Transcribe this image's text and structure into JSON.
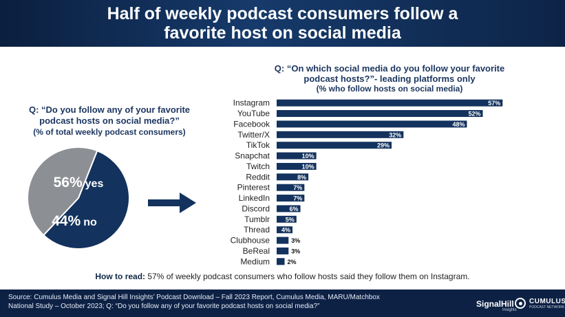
{
  "header": {
    "title_line1": "Half of weekly podcast consumers follow a",
    "title_line2": "favorite host on social media"
  },
  "left_question": {
    "line1": "Q: “Do you follow any of your favorite",
    "line2": "podcast hosts on social media?”",
    "line3": "(% of total weekly podcast consumers)"
  },
  "right_question": {
    "line1": "Q: “On which social media do you follow your favorite",
    "line2": "podcast hosts?”-  leading platforms only",
    "line3": "(% who follow hosts on social media)"
  },
  "colors": {
    "navy": "#13325e",
    "gray": "#8c8f94",
    "white": "#ffffff"
  },
  "chart_data": [
    {
      "type": "pie",
      "slices": [
        {
          "label": "yes",
          "value": 56,
          "text": "56%",
          "color": "#13325e"
        },
        {
          "label": "no",
          "value": 44,
          "text": "44%",
          "color": "#8c8f94"
        }
      ]
    },
    {
      "type": "bar",
      "orientation": "horizontal",
      "categories": [
        "Instagram",
        "YouTube",
        "Facebook",
        "Twitter/X",
        "TikTok",
        "Snapchat",
        "Twitch",
        "Reddit",
        "Pinterest",
        "LinkedIn",
        "Discord",
        "Tumblr",
        "Thread",
        "Clubhouse",
        "BeReal",
        "Medium"
      ],
      "values": [
        57,
        52,
        48,
        32,
        29,
        10,
        10,
        8,
        7,
        7,
        6,
        5,
        4,
        3,
        3,
        2
      ],
      "value_suffix": "%",
      "xlim": [
        0,
        60
      ],
      "grid": false,
      "color": "#13325e"
    }
  ],
  "how_to_read": {
    "label": "How to read:",
    "text": " 57% of weekly podcast consumers who follow hosts said they follow them on Instagram."
  },
  "footer": {
    "source_line1": "Source: Cumulus Media and Signal Hill Insights’ Podcast Download – Fall 2023 Report, Cumulus Media, MARU/Matchbox",
    "source_line2": "National Study – October 2023; Q: “Do you follow any of your favorite podcast hosts on social media?”",
    "logo1": "SignalHill",
    "logo1_sub": "Insights",
    "logo2": "CUMULUS",
    "logo2_sub": "PODCAST NETWORK"
  }
}
